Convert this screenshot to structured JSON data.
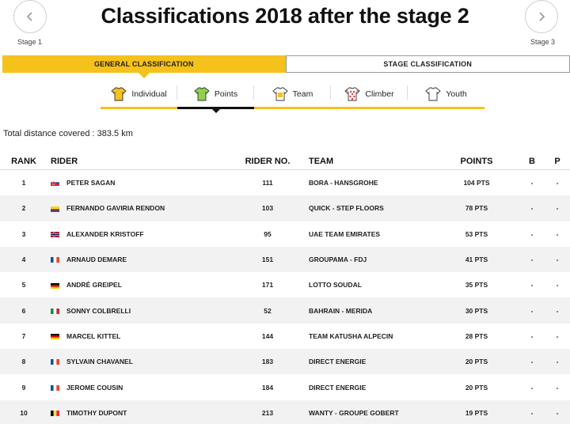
{
  "page": {
    "title": "Classifications 2018 after the stage 2"
  },
  "nav": {
    "prev": {
      "label": "Stage 1",
      "icon": "chevron-left-icon"
    },
    "next": {
      "label": "Stage 3",
      "icon": "chevron-right-icon"
    }
  },
  "classification_tabs": [
    {
      "label": "GENERAL CLASSIFICATION",
      "active": true
    },
    {
      "label": "STAGE CLASSIFICATION",
      "active": false
    }
  ],
  "sub_tabs": [
    {
      "label": "Individual",
      "icon": "yellow-jersey-icon",
      "color": "#f5c11b",
      "active": false
    },
    {
      "label": "Points",
      "icon": "green-jersey-icon",
      "color": "#8fd14f",
      "active": true
    },
    {
      "label": "Team",
      "icon": "team-jersey-icon",
      "color": "#f5c11b",
      "active": false
    },
    {
      "label": "Climber",
      "icon": "polka-dot-jersey-icon",
      "color": "#e23a3a",
      "active": false
    },
    {
      "label": "Youth",
      "icon": "white-jersey-icon",
      "color": "#ffffff",
      "active": false
    }
  ],
  "distance": {
    "label": "Total distance covered : ",
    "value": "383.5 km"
  },
  "table": {
    "headers": {
      "rank": "RANK",
      "rider": "RIDER",
      "rider_no": "RIDER NO.",
      "team": "TEAM",
      "points": "POINTS",
      "b": "B",
      "p": "P"
    },
    "rows": [
      {
        "rank": "1",
        "flag": "SK",
        "rider": "PETER SAGAN",
        "no": "111",
        "team": "BORA - HANSGROHE",
        "points": "104 PTS",
        "b": "-",
        "p": "-"
      },
      {
        "rank": "2",
        "flag": "CO",
        "rider": "FERNANDO GAVIRIA RENDON",
        "no": "103",
        "team": "QUICK - STEP FLOORS",
        "points": "78 PTS",
        "b": "-",
        "p": "-"
      },
      {
        "rank": "3",
        "flag": "NO",
        "rider": "ALEXANDER KRISTOFF",
        "no": "95",
        "team": "UAE TEAM EMIRATES",
        "points": "53 PTS",
        "b": "-",
        "p": "-"
      },
      {
        "rank": "4",
        "flag": "FR",
        "rider": "ARNAUD DEMARE",
        "no": "151",
        "team": "GROUPAMA - FDJ",
        "points": "41 PTS",
        "b": "-",
        "p": "-"
      },
      {
        "rank": "5",
        "flag": "DE",
        "rider": "ANDRÉ GREIPEL",
        "no": "171",
        "team": "LOTTO SOUDAL",
        "points": "35 PTS",
        "b": "-",
        "p": "-"
      },
      {
        "rank": "6",
        "flag": "IT",
        "rider": "SONNY COLBRELLI",
        "no": "52",
        "team": "BAHRAIN - MERIDA",
        "points": "30 PTS",
        "b": "-",
        "p": "-"
      },
      {
        "rank": "7",
        "flag": "DE",
        "rider": "MARCEL KITTEL",
        "no": "144",
        "team": "TEAM KATUSHA ALPECIN",
        "points": "28 PTS",
        "b": "-",
        "p": "-"
      },
      {
        "rank": "8",
        "flag": "FR",
        "rider": "SYLVAIN CHAVANEL",
        "no": "183",
        "team": "DIRECT ENERGIE",
        "points": "20 PTS",
        "b": "-",
        "p": "-"
      },
      {
        "rank": "9",
        "flag": "FR",
        "rider": "JEROME COUSIN",
        "no": "184",
        "team": "DIRECT ENERGIE",
        "points": "20 PTS",
        "b": "-",
        "p": "-"
      },
      {
        "rank": "10",
        "flag": "BE",
        "rider": "TIMOTHY DUPONT",
        "no": "213",
        "team": "WANTY - GROUPE GOBERT",
        "points": "19 PTS",
        "b": "-",
        "p": "-"
      }
    ]
  }
}
